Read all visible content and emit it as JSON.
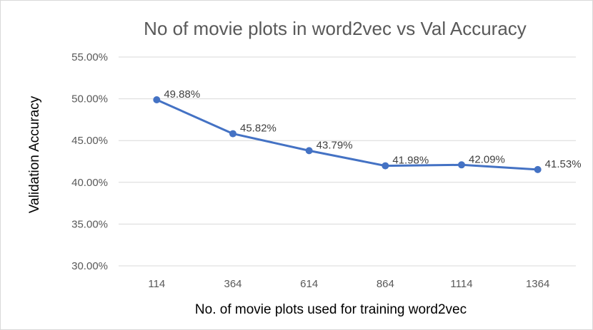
{
  "chart_data": {
    "type": "line",
    "title": "No of movie plots in word2vec vs Val Accuracy",
    "xlabel": "No. of movie plots used for training word2vec",
    "ylabel": "Validation Accuracy",
    "categories": [
      "114",
      "364",
      "614",
      "864",
      "1114",
      "1364"
    ],
    "series": [
      {
        "values": [
          49.88,
          45.82,
          43.79,
          41.98,
          42.09,
          41.53
        ],
        "labels": [
          "49.88%",
          "45.82%",
          "43.79%",
          "41.98%",
          "42.09%",
          "41.53%"
        ],
        "color": "#4472c4"
      }
    ],
    "ylim": [
      30,
      55
    ],
    "yticks": [
      30,
      35,
      40,
      45,
      50,
      55
    ],
    "ytick_labels": [
      "30.00%",
      "35.00%",
      "40.00%",
      "45.00%",
      "50.00%",
      "55.00%"
    ],
    "grid": true,
    "legend": "none"
  }
}
